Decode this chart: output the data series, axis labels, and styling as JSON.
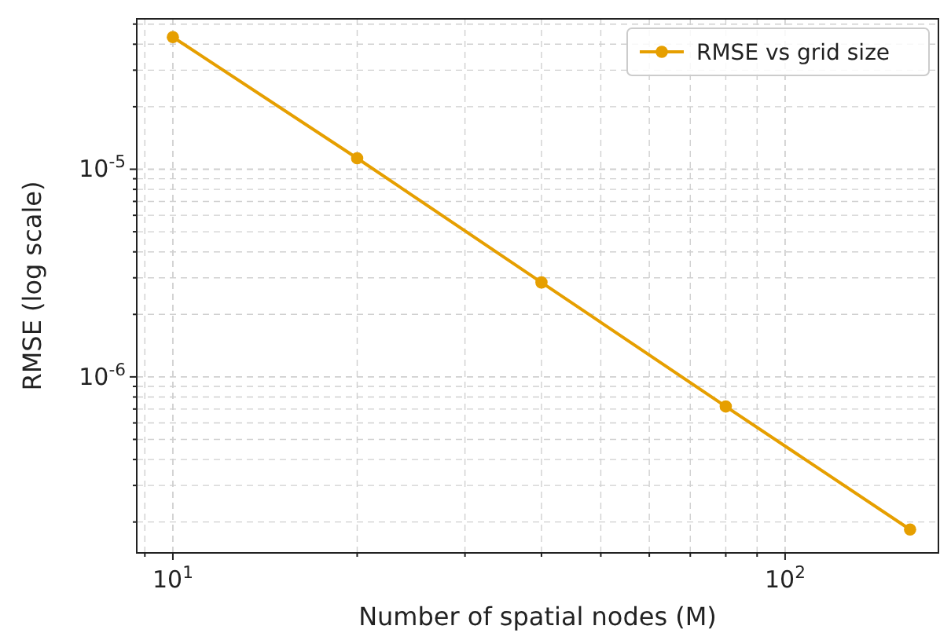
{
  "chart_data": {
    "type": "line",
    "xlabel": "Number of spatial nodes (M)",
    "ylabel": "RMSE (log scale)",
    "log": "xy",
    "grid": true,
    "legend": "top right",
    "marker": "circle",
    "line_style": "solid",
    "x": [
      10,
      20,
      40,
      80,
      160
    ],
    "series": [
      {
        "name": "RMSE vs grid size",
        "color": "#e69f00",
        "values": [
          4.33e-05,
          1.13e-05,
          2.85e-06,
          7.2e-07,
          1.84e-07
        ]
      }
    ],
    "xlim": [
      8.73,
      178
    ],
    "xticks": [
      {
        "value": 9,
        "label": null
      },
      {
        "value": 10,
        "label": "10$^{1}$"
      },
      {
        "value": 20,
        "label": null
      },
      {
        "value": 30,
        "label": null
      },
      {
        "value": 40,
        "label": null
      },
      {
        "value": 50,
        "label": null
      },
      {
        "value": 60,
        "label": null
      },
      {
        "value": 70,
        "label": null
      },
      {
        "value": 80,
        "label": null
      },
      {
        "value": 90,
        "label": null
      },
      {
        "value": 100,
        "label": "10$^{2}$"
      }
    ],
    "ylim": [
      1.42e-07,
      5.3e-05
    ],
    "yticks": [
      {
        "value": 2e-07,
        "label": null
      },
      {
        "value": 3e-07,
        "label": null
      },
      {
        "value": 4e-07,
        "label": null
      },
      {
        "value": 5e-07,
        "label": null
      },
      {
        "value": 6e-07,
        "label": null
      },
      {
        "value": 7e-07,
        "label": null
      },
      {
        "value": 8e-07,
        "label": null
      },
      {
        "value": 9e-07,
        "label": null
      },
      {
        "value": 1e-06,
        "label": "10$^{-6}$"
      },
      {
        "value": 2e-06,
        "label": null
      },
      {
        "value": 3e-06,
        "label": null
      },
      {
        "value": 4e-06,
        "label": null
      },
      {
        "value": 5e-06,
        "label": null
      },
      {
        "value": 6e-06,
        "label": null
      },
      {
        "value": 7e-06,
        "label": null
      },
      {
        "value": 8e-06,
        "label": null
      },
      {
        "value": 9e-06,
        "label": null
      },
      {
        "value": 1e-05,
        "label": "10$^{-5}$"
      },
      {
        "value": 2e-05,
        "label": null
      },
      {
        "value": 3e-05,
        "label": null
      },
      {
        "value": 4e-05,
        "label": null
      },
      {
        "value": 5e-05,
        "label": null
      }
    ]
  }
}
